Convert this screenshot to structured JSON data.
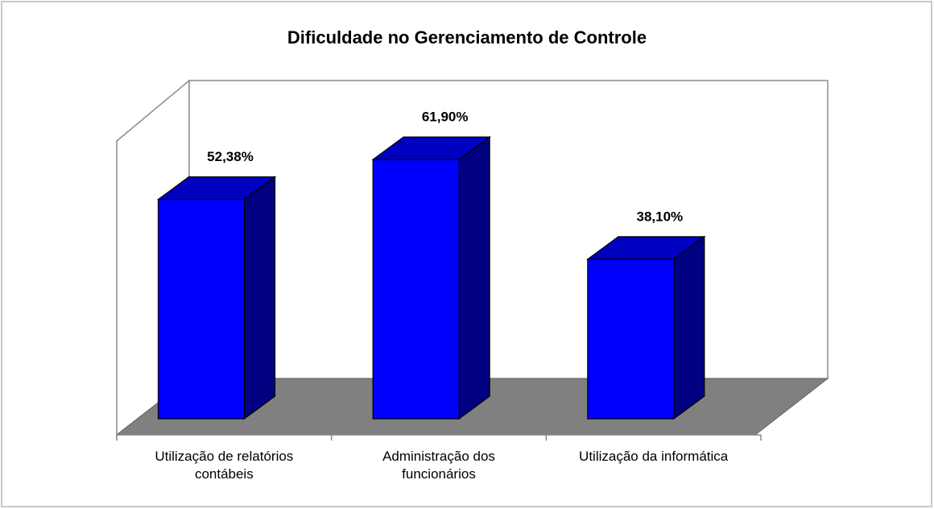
{
  "chart_data": {
    "type": "bar",
    "title": "Dificuldade no Gerenciamento de Controle",
    "categories": [
      "Utilização de relatórios contábeis",
      "Administração dos funcionários",
      "Utilização da informática"
    ],
    "values": [
      52.38,
      61.9,
      38.1
    ],
    "value_labels": [
      "52,38%",
      "61,90%",
      "38,10%"
    ],
    "color": "#0000ff"
  }
}
